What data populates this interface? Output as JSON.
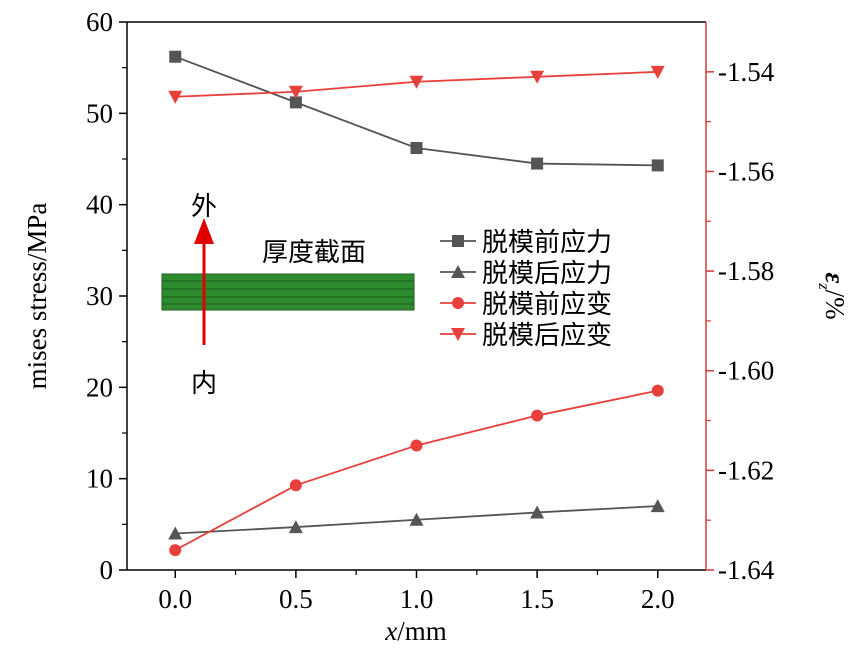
{
  "chart_data": {
    "type": "line",
    "xlabel_var": "x",
    "xlabel_unit": "/mm",
    "ylabel_left": "mises stress/MPa",
    "ylabel_right_var": "ε",
    "ylabel_right_sub": "z",
    "ylabel_right_unit": "/%",
    "xlim": [
      -0.2,
      2.2
    ],
    "ylim_left": [
      0,
      60
    ],
    "ylim_right": [
      -1.64,
      -1.53
    ],
    "x_ticks": [
      "0.0",
      "0.5",
      "1.0",
      "1.5",
      "2.0"
    ],
    "y_left_ticks": [
      "0",
      "10",
      "20",
      "30",
      "40",
      "50",
      "60"
    ],
    "y_right_ticks": [
      "-1.54",
      "-1.56",
      "-1.58",
      "-1.60",
      "-1.62",
      "-1.64"
    ],
    "x": [
      0.0,
      0.5,
      1.0,
      1.5,
      2.0
    ],
    "series": [
      {
        "name": "脱模前应力",
        "axis": "left",
        "marker": "square",
        "color": "#555555",
        "values": [
          56.2,
          51.2,
          46.2,
          44.5,
          44.3
        ]
      },
      {
        "name": "脱模后应力",
        "axis": "left",
        "marker": "triangle-up",
        "color": "#555555",
        "values": [
          4.0,
          4.7,
          5.5,
          6.3,
          7.0
        ]
      },
      {
        "name": "脱模前应变",
        "axis": "right",
        "marker": "circle",
        "color": "#e8403a",
        "values": [
          -1.636,
          -1.623,
          -1.615,
          -1.609,
          -1.604
        ]
      },
      {
        "name": "脱模后应变",
        "axis": "right",
        "marker": "triangle-down",
        "color": "#e8403a",
        "values": [
          -1.545,
          -1.544,
          -1.542,
          -1.541,
          -1.54
        ]
      }
    ],
    "axis_colors": {
      "left": "#000000",
      "right": "#d33a3a"
    },
    "inset": {
      "label": "厚度截面",
      "arrow_top_label": "外",
      "arrow_bottom_label": "内",
      "bar_color": "#2e8b2e",
      "arrow_color": "#e00000"
    }
  }
}
